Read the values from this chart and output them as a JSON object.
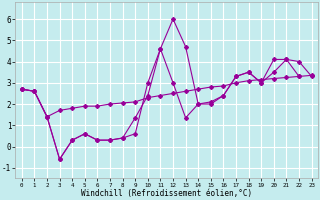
{
  "xlabel": "Windchill (Refroidissement éolien,°C)",
  "background_color": "#c5ecee",
  "grid_color": "#ffffff",
  "line_color": "#990099",
  "xlim": [
    -0.5,
    23.5
  ],
  "ylim": [
    -1.5,
    6.8
  ],
  "yticks": [
    -1,
    0,
    1,
    2,
    3,
    4,
    5,
    6
  ],
  "xticks": [
    0,
    1,
    2,
    3,
    4,
    5,
    6,
    7,
    8,
    9,
    10,
    11,
    12,
    13,
    14,
    15,
    16,
    17,
    18,
    19,
    20,
    21,
    22,
    23
  ],
  "series1": [
    2.7,
    2.6,
    1.4,
    -0.6,
    0.3,
    0.6,
    0.3,
    0.3,
    0.4,
    0.6,
    3.0,
    4.6,
    6.0,
    4.7,
    2.0,
    2.1,
    2.4,
    3.3,
    3.5,
    3.0,
    4.1,
    4.1,
    4.0,
    3.3
  ],
  "series2": [
    2.7,
    2.6,
    1.4,
    1.7,
    1.8,
    1.9,
    1.9,
    2.0,
    2.05,
    2.1,
    2.3,
    2.4,
    2.5,
    2.6,
    2.7,
    2.8,
    2.85,
    3.0,
    3.1,
    3.15,
    3.2,
    3.25,
    3.3,
    3.35
  ],
  "series3": [
    2.7,
    2.6,
    1.4,
    -0.6,
    0.3,
    0.6,
    0.3,
    0.3,
    0.4,
    1.35,
    2.4,
    4.6,
    3.0,
    1.35,
    2.0,
    2.0,
    2.4,
    3.3,
    3.5,
    3.0,
    3.5,
    4.1,
    3.3,
    null
  ]
}
